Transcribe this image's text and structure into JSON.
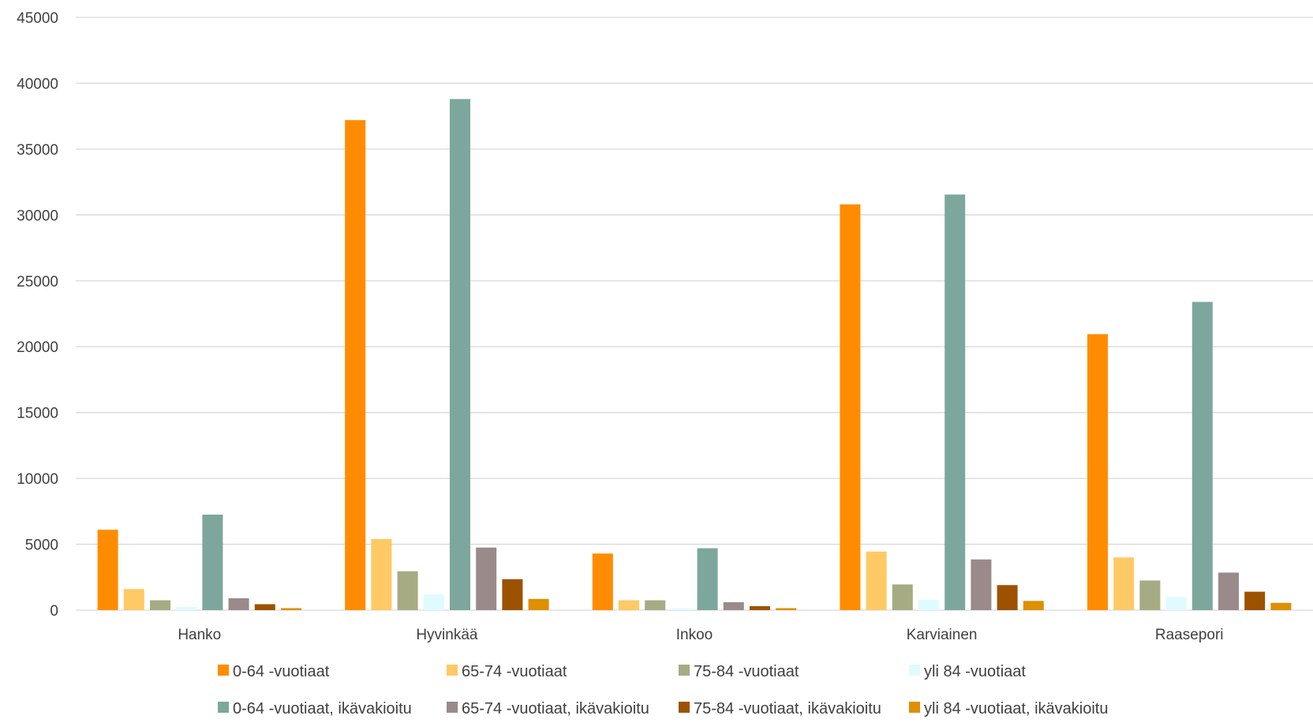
{
  "chart_data": {
    "type": "bar",
    "categories": [
      "Hanko",
      "Hyvinkää",
      "Inkoo",
      "Karviainen",
      "Raasepori"
    ],
    "ylim": [
      0,
      45000
    ],
    "yticks": [
      0,
      5000,
      10000,
      15000,
      20000,
      25000,
      30000,
      35000,
      40000,
      45000
    ],
    "ytick_labels": [
      "0",
      "5000",
      "10000",
      "15000",
      "20000",
      "25000",
      "30000",
      "35000",
      "40000",
      "45000"
    ],
    "grid": true,
    "legend_position": "bottom",
    "series": [
      {
        "name": "0-64 -vuotiaat",
        "color": "#ff8c00",
        "values": [
          6100,
          37200,
          4300,
          30800,
          20950
        ]
      },
      {
        "name": "65-74 -vuotiaat",
        "color": "#ffc966",
        "values": [
          1600,
          5400,
          750,
          4450,
          4000
        ]
      },
      {
        "name": "75-84 -vuotiaat",
        "color": "#a6ab83",
        "values": [
          750,
          2950,
          750,
          1950,
          2250
        ]
      },
      {
        "name": "yli 84 -vuotiaat",
        "color": "#e0fbff",
        "values": [
          250,
          1200,
          150,
          800,
          1000
        ]
      },
      {
        "name": "0-64 -vuotiaat, ikävakioitu",
        "color": "#7da79c",
        "values": [
          7250,
          38800,
          4700,
          31550,
          23400
        ]
      },
      {
        "name": "65-74 -vuotiaat, ikävakioitu",
        "color": "#9a8a8a",
        "values": [
          900,
          4750,
          600,
          3850,
          2850
        ]
      },
      {
        "name": "75-84 -vuotiaat, ikävakioitu",
        "color": "#9c5200",
        "values": [
          450,
          2350,
          300,
          1900,
          1400
        ]
      },
      {
        "name": "yli 84 -vuotiaat, ikävakioitu",
        "color": "#df8f00",
        "values": [
          150,
          850,
          150,
          700,
          550
        ]
      }
    ]
  }
}
